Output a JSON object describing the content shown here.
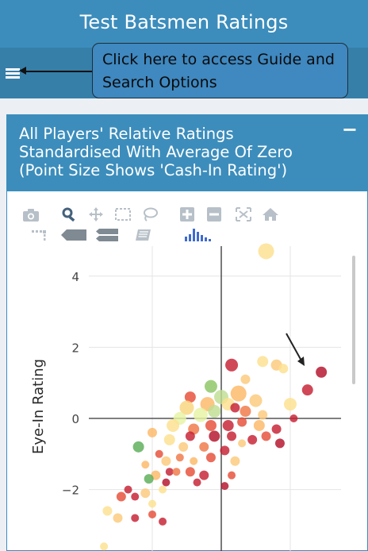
{
  "header": {
    "title": "Test Batsmen Ratings"
  },
  "callout": {
    "line1": "Click here to access Guide and",
    "line2": "Search Options"
  },
  "box": {
    "title_line1": "All Players' Relative Ratings",
    "title_line2": "Standardised With Average Of Zero",
    "title_line3": "(Point Size Shows 'Cash-In Rating')",
    "collapse_label": "−"
  },
  "modebar": {
    "icons": [
      "camera-icon",
      "zoom-icon",
      "pan-icon",
      "box-select-icon",
      "lasso-select-icon",
      "zoom-in-icon",
      "zoom-out-icon",
      "autoscale-icon",
      "reset-axes-icon",
      "spike-lines-icon",
      "hover-closest-icon",
      "hover-compare-icon",
      "book-icon",
      "plotly-logo-icon"
    ]
  },
  "colors": {
    "header": "#3c8dbc",
    "navbar": "#367fa9",
    "content_bg": "#ecf0f5"
  },
  "chart_data": {
    "type": "scatter",
    "ylabel": "Eye-In Rating",
    "xlabel": "",
    "yticks": [
      "4",
      "2",
      "0",
      "−2"
    ],
    "ylim": [
      -3.75,
      4.7
    ],
    "xlim": [
      -4.0,
      3.7
    ],
    "points": [
      {
        "x": 1.3,
        "y": 4.7,
        "size": 10,
        "color": "#fde08f"
      },
      {
        "x": 0.3,
        "y": 1.5,
        "size": 8,
        "color": "#c62032"
      },
      {
        "x": 1.2,
        "y": 1.6,
        "size": 7,
        "color": "#fde08f"
      },
      {
        "x": 1.6,
        "y": 1.5,
        "size": 7,
        "color": "#fbc97a"
      },
      {
        "x": 1.8,
        "y": 1.4,
        "size": 6,
        "color": "#fde08f"
      },
      {
        "x": 0.7,
        "y": 1.1,
        "size": 6,
        "color": "#fbc97a"
      },
      {
        "x": 2.9,
        "y": 1.3,
        "size": 7,
        "color": "#b3112a"
      },
      {
        "x": 2.5,
        "y": 0.8,
        "size": 7,
        "color": "#c62032"
      },
      {
        "x": -0.3,
        "y": 0.9,
        "size": 8,
        "color": "#8cc464"
      },
      {
        "x": 0.0,
        "y": 0.6,
        "size": 9,
        "color": "#c0de92"
      },
      {
        "x": 0.5,
        "y": 0.7,
        "size": 10,
        "color": "#fdb867"
      },
      {
        "x": 1.0,
        "y": 0.5,
        "size": 8,
        "color": "#fbc97a"
      },
      {
        "x": 0.2,
        "y": 0.4,
        "size": 8,
        "color": "#fde08f"
      },
      {
        "x": -0.9,
        "y": 0.6,
        "size": 7,
        "color": "#e74d37"
      },
      {
        "x": -1.0,
        "y": 0.3,
        "size": 9,
        "color": "#f9d57d"
      },
      {
        "x": -0.4,
        "y": 0.4,
        "size": 9,
        "color": "#fdb867"
      },
      {
        "x": 0.7,
        "y": 0.2,
        "size": 7,
        "color": "#ef7747"
      },
      {
        "x": 1.2,
        "y": 0.1,
        "size": 6,
        "color": "#fbc97a"
      },
      {
        "x": 2.0,
        "y": 0.4,
        "size": 8,
        "color": "#fde08f"
      },
      {
        "x": 0.4,
        "y": 0.3,
        "size": 6,
        "color": "#c62032"
      },
      {
        "x": -0.2,
        "y": 0.2,
        "size": 8,
        "color": "#c0de92"
      },
      {
        "x": -0.6,
        "y": 0.1,
        "size": 9,
        "color": "#e6f3a3"
      },
      {
        "x": -1.2,
        "y": 0.0,
        "size": 8,
        "color": "#e6f3a3"
      },
      {
        "x": -1.4,
        "y": -0.2,
        "size": 8,
        "color": "#fde08f"
      },
      {
        "x": -0.8,
        "y": -0.3,
        "size": 7,
        "color": "#ef7747"
      },
      {
        "x": -0.3,
        "y": -0.2,
        "size": 7,
        "color": "#e74d37"
      },
      {
        "x": 0.2,
        "y": -0.2,
        "size": 7,
        "color": "#c62032"
      },
      {
        "x": 0.6,
        "y": -0.1,
        "size": 6,
        "color": "#e74d37"
      },
      {
        "x": 1.1,
        "y": -0.2,
        "size": 7,
        "color": "#fdb867"
      },
      {
        "x": 1.6,
        "y": -0.3,
        "size": 6,
        "color": "#c62032"
      },
      {
        "x": 2.1,
        "y": 0.0,
        "size": 5,
        "color": "#c62032"
      },
      {
        "x": -0.9,
        "y": -0.5,
        "size": 6,
        "color": "#c62032"
      },
      {
        "x": -0.2,
        "y": -0.5,
        "size": 7,
        "color": "#b3112a"
      },
      {
        "x": 0.3,
        "y": -0.5,
        "size": 6,
        "color": "#c62032"
      },
      {
        "x": 0.9,
        "y": -0.6,
        "size": 6,
        "color": "#c62032"
      },
      {
        "x": 1.3,
        "y": -0.5,
        "size": 6,
        "color": "#e74d37"
      },
      {
        "x": -1.5,
        "y": -0.6,
        "size": 7,
        "color": "#fde08f"
      },
      {
        "x": -2.0,
        "y": -0.4,
        "size": 6,
        "color": "#fdb867"
      },
      {
        "x": -2.4,
        "y": -0.8,
        "size": 7,
        "color": "#5aad58"
      },
      {
        "x": -1.1,
        "y": -0.8,
        "size": 6,
        "color": "#fbc97a"
      },
      {
        "x": -0.5,
        "y": -0.8,
        "size": 6,
        "color": "#ef7747"
      },
      {
        "x": 0.1,
        "y": -0.9,
        "size": 6,
        "color": "#c62032"
      },
      {
        "x": 0.6,
        "y": -0.7,
        "size": 5,
        "color": "#fbc97a"
      },
      {
        "x": 1.7,
        "y": -0.7,
        "size": 6,
        "color": "#b3112a"
      },
      {
        "x": -1.8,
        "y": -1.0,
        "size": 5,
        "color": "#e74d37"
      },
      {
        "x": -1.6,
        "y": -1.2,
        "size": 6,
        "color": "#fbc97a"
      },
      {
        "x": -1.2,
        "y": -1.1,
        "size": 5,
        "color": "#ef7747"
      },
      {
        "x": -0.8,
        "y": -1.2,
        "size": 5,
        "color": "#fdb867"
      },
      {
        "x": -0.3,
        "y": -1.1,
        "size": 6,
        "color": "#e74d37"
      },
      {
        "x": 0.4,
        "y": -1.2,
        "size": 6,
        "color": "#fbc97a"
      },
      {
        "x": -2.2,
        "y": -1.3,
        "size": 5,
        "color": "#fdb867"
      },
      {
        "x": -1.5,
        "y": -1.5,
        "size": 5,
        "color": "#c62032"
      },
      {
        "x": -0.9,
        "y": -1.5,
        "size": 6,
        "color": "#e74d37"
      },
      {
        "x": -0.5,
        "y": -1.6,
        "size": 6,
        "color": "#c62032"
      },
      {
        "x": 0.3,
        "y": -1.6,
        "size": 5,
        "color": "#e74d37"
      },
      {
        "x": -1.9,
        "y": -1.6,
        "size": 6,
        "color": "#fdb867"
      },
      {
        "x": -1.3,
        "y": -1.5,
        "size": 5,
        "color": "#ef7747"
      },
      {
        "x": -2.1,
        "y": -1.7,
        "size": 6,
        "color": "#5aad58"
      },
      {
        "x": -1.6,
        "y": -1.8,
        "size": 5,
        "color": "#b3112a"
      },
      {
        "x": -0.7,
        "y": -1.8,
        "size": 5,
        "color": "#c62032"
      },
      {
        "x": 0.1,
        "y": -1.9,
        "size": 5,
        "color": "#b3112a"
      },
      {
        "x": -1.7,
        "y": -2.0,
        "size": 5,
        "color": "#fde08f"
      },
      {
        "x": -2.7,
        "y": -2.0,
        "size": 5,
        "color": "#c62032"
      },
      {
        "x": -2.2,
        "y": -2.1,
        "size": 6,
        "color": "#fbc97a"
      },
      {
        "x": -2.9,
        "y": -2.2,
        "size": 6,
        "color": "#e74d37"
      },
      {
        "x": -2.5,
        "y": -2.2,
        "size": 5,
        "color": "#c62032"
      },
      {
        "x": -2.0,
        "y": -2.4,
        "size": 5,
        "color": "#fde08f"
      },
      {
        "x": -3.3,
        "y": -2.6,
        "size": 6,
        "color": "#fde08f"
      },
      {
        "x": -3.0,
        "y": -2.8,
        "size": 6,
        "color": "#fbc97a"
      },
      {
        "x": -2.5,
        "y": -2.8,
        "size": 5,
        "color": "#c62032"
      },
      {
        "x": -2.0,
        "y": -2.7,
        "size": 5,
        "color": "#e74d37"
      },
      {
        "x": -1.7,
        "y": -2.9,
        "size": 5,
        "color": "#c62032"
      },
      {
        "x": -3.4,
        "y": -3.6,
        "size": 5,
        "color": "#fde08f"
      }
    ]
  }
}
